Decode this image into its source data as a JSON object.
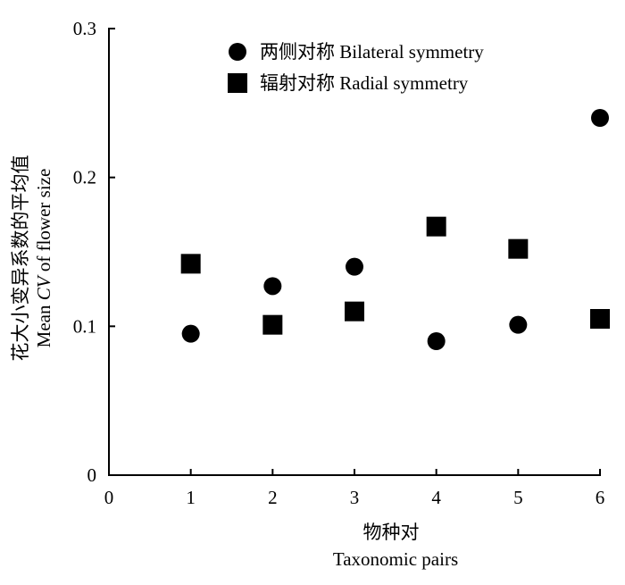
{
  "chart_data": {
    "type": "scatter",
    "title": "",
    "xlabel_cn": "物种对",
    "xlabel": "Taxonomic pairs",
    "ylabel_cn": "花大小变异系数的平均值",
    "ylabel_prefix": "Mean ",
    "ylabel_italic": "CV",
    "ylabel_suffix": " of flower size",
    "xlim": [
      0,
      6
    ],
    "ylim": [
      0,
      0.3
    ],
    "x_ticks": [
      0,
      1,
      2,
      3,
      4,
      5,
      6
    ],
    "x_tick_labels": [
      "0",
      "1",
      "2",
      "3",
      "4",
      "5",
      "6"
    ],
    "y_ticks": [
      0,
      0.1,
      0.2,
      0.3
    ],
    "y_tick_labels": [
      "0",
      "0.1",
      "0.2",
      "0.3"
    ],
    "grid": false,
    "legend_position": "top",
    "series": [
      {
        "name": "两侧对称 Bilateral symmetry",
        "marker": "circle",
        "color": "#000000",
        "x": [
          1,
          2,
          3,
          4,
          5,
          6
        ],
        "y": [
          0.095,
          0.127,
          0.14,
          0.09,
          0.101,
          0.24
        ]
      },
      {
        "name": "辐射对称 Radial symmetry",
        "marker": "square",
        "color": "#000000",
        "x": [
          1,
          2,
          3,
          4,
          5,
          6
        ],
        "y": [
          0.142,
          0.101,
          0.11,
          0.167,
          0.152,
          0.105
        ]
      }
    ]
  }
}
